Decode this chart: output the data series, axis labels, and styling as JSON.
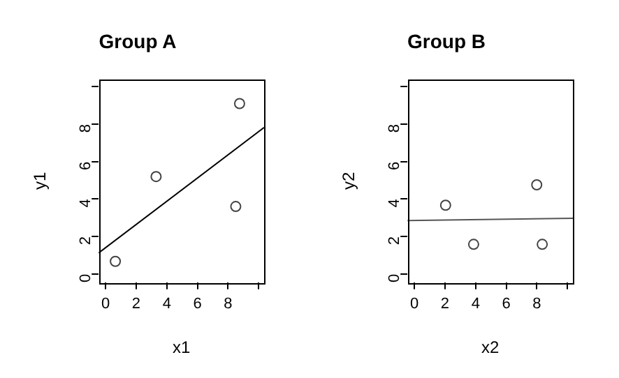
{
  "chart_data": [
    {
      "type": "scatter",
      "title": "Group A",
      "xlabel": "x1",
      "ylabel": "y1",
      "xlim": [
        -0.45,
        10.35
      ],
      "ylim": [
        -0.45,
        10.4
      ],
      "xticks": [
        0,
        2,
        4,
        6,
        8,
        {
          "value": 10,
          "label": null
        }
      ],
      "yticks": [
        0,
        2,
        4,
        6,
        8,
        {
          "value": 10,
          "label": null
        }
      ],
      "legend": false,
      "grid": false,
      "series": [
        {
          "marker": "circle",
          "color": "#444444",
          "x": [
            0.64,
            3.3,
            8.5,
            8.75
          ],
          "values": [
            0.67,
            5.2,
            3.6,
            9.1
          ]
        },
        {
          "type": "line",
          "marker": "none",
          "color": "#000000",
          "x": [
            -0.45,
            10.35
          ],
          "values": [
            1.12,
            7.82
          ]
        }
      ]
    },
    {
      "type": "scatter",
      "title": "Group B",
      "xlabel": "x2",
      "ylabel": "y2",
      "xlim": [
        -0.45,
        10.35
      ],
      "ylim": [
        -0.45,
        10.4
      ],
      "xticks": [
        0,
        2,
        4,
        6,
        8,
        {
          "value": 10,
          "label": null
        }
      ],
      "yticks": [
        0,
        2,
        4,
        6,
        8,
        {
          "value": 10,
          "label": null
        }
      ],
      "legend": false,
      "grid": false,
      "series": [
        {
          "marker": "circle",
          "color": "#444444",
          "x": [
            2.04,
            3.87,
            7.99,
            8.35
          ],
          "values": [
            3.67,
            1.58,
            4.76,
            1.58
          ]
        },
        {
          "type": "line",
          "marker": "none",
          "color": "#555555",
          "x": [
            -0.45,
            10.35
          ],
          "values": [
            2.85,
            2.97
          ]
        }
      ]
    }
  ]
}
